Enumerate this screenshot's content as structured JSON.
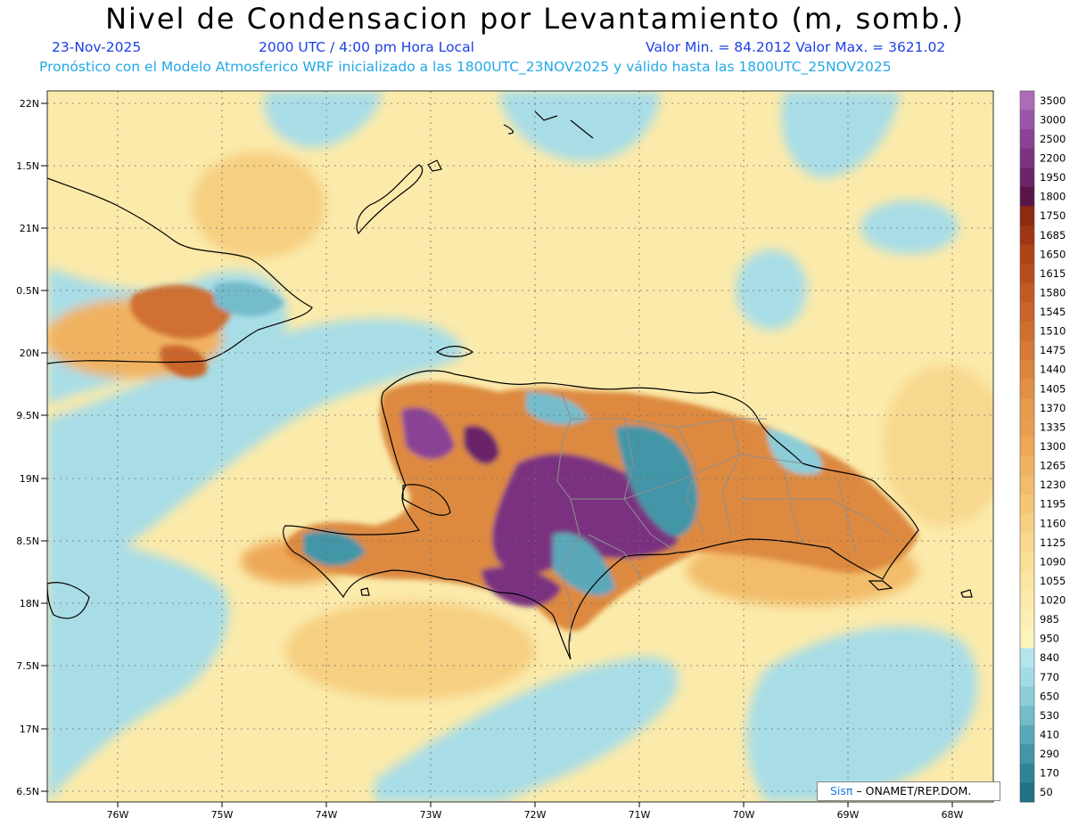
{
  "title": "Nivel de Condensacion por Levantamiento (m, somb.)",
  "header": {
    "date": "23-Nov-2025",
    "time": "2000 UTC / 4:00 pm Hora Local",
    "minmax": "Valor Min. = 84.2012   Valor Max. = 3621.02",
    "forecast": "Pronóstico con el Modelo Atmosferico WRF inicializado a las 1800UTC_23NOV2025 y válido hasta las   1800UTC_25NOV2025"
  },
  "lat_labels": [
    "22N",
    "1.5N",
    "21N",
    "0.5N",
    "20N",
    "9.5N",
    "19N",
    "8.5N",
    "18N",
    "7.5N",
    "17N",
    "6.5N"
  ],
  "lon_labels": [
    "76W",
    "75W",
    "74W",
    "73W",
    "72W",
    "71W",
    "70W",
    "69W",
    "68W"
  ],
  "colorbar": {
    "labels": [
      "3500",
      "3000",
      "2500",
      "2200",
      "1950",
      "1800",
      "1750",
      "1685",
      "1650",
      "1615",
      "1580",
      "1545",
      "1510",
      "1475",
      "1440",
      "1405",
      "1370",
      "1335",
      "1300",
      "1265",
      "1230",
      "1195",
      "1160",
      "1125",
      "1090",
      "1055",
      "1020",
      "985",
      "950",
      "840",
      "770",
      "650",
      "530",
      "410",
      "290",
      "170",
      "50"
    ],
    "colors": [
      "#ad6bb8",
      "#9b55a8",
      "#8a4295",
      "#7a3380",
      "#6a2468",
      "#5a1548",
      "#8c2a12",
      "#9e3614",
      "#ae4318",
      "#b84e1c",
      "#c25b22",
      "#c9652a",
      "#d06f30",
      "#d67a36",
      "#dc853d",
      "#e29045",
      "#e69a4c",
      "#ea9d50",
      "#eda857",
      "#f0b261",
      "#f2bc6b",
      "#f4c676",
      "#f6cf81",
      "#f8d88e",
      "#f9df98",
      "#fae5a2",
      "#fbeaaa",
      "#fcefb3",
      "#fdf3bd",
      "#b4e4ec",
      "#a2dbe6",
      "#8ccdd9",
      "#74bccb",
      "#5aa8b9",
      "#4296a8",
      "#2e8497",
      "#1f7285"
    ]
  },
  "credit": {
    "brand": "Sisπ",
    "org": " – ONAMET/REP.DOM."
  }
}
